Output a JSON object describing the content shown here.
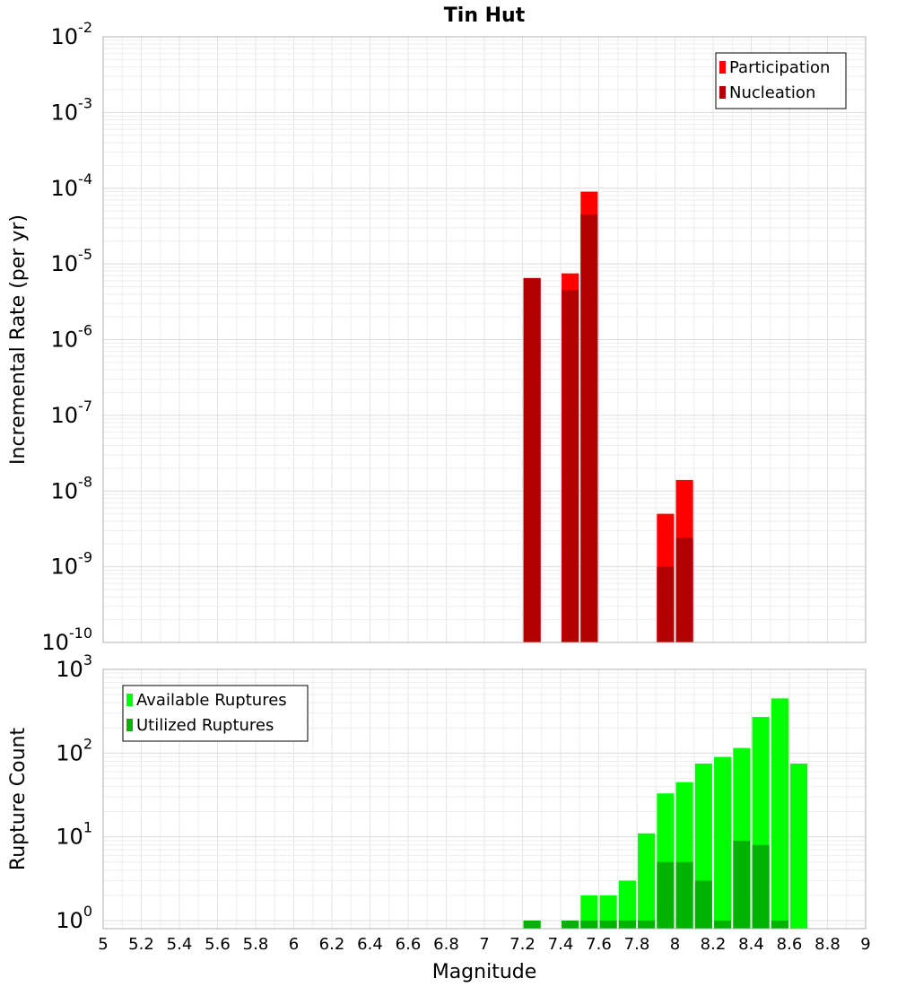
{
  "chart_data": [
    {
      "type": "bar",
      "title": "Tin Hut",
      "xlabel": "",
      "ylabel": "Incremental Rate (per yr)",
      "yscale": "log",
      "xlim": [
        5,
        9
      ],
      "ylim": [
        1e-10,
        0.01
      ],
      "grid": true,
      "bar_width": 0.09,
      "legend_position": "top-right",
      "y_ticks": [
        {
          "base": "10",
          "exp": "-10",
          "value": 1e-10
        },
        {
          "base": "10",
          "exp": "-9",
          "value": 1e-09
        },
        {
          "base": "10",
          "exp": "-8",
          "value": 1e-08
        },
        {
          "base": "10",
          "exp": "-7",
          "value": 1e-07
        },
        {
          "base": "10",
          "exp": "-6",
          "value": 1e-06
        },
        {
          "base": "10",
          "exp": "-5",
          "value": 1e-05
        },
        {
          "base": "10",
          "exp": "-4",
          "value": 0.0001
        },
        {
          "base": "10",
          "exp": "-3",
          "value": 0.001
        },
        {
          "base": "10",
          "exp": "-2",
          "value": 0.01
        }
      ],
      "series": [
        {
          "name": "Participation",
          "color": "#ff0000",
          "x": [
            7.25,
            7.45,
            7.55,
            7.95,
            8.05
          ],
          "values": [
            6.5e-06,
            7.5e-06,
            9e-05,
            5e-09,
            1.4e-08
          ]
        },
        {
          "name": "Nucleation",
          "color": "#b30000",
          "x": [
            7.25,
            7.45,
            7.55,
            7.95,
            8.05
          ],
          "values": [
            6.5e-06,
            4.5e-06,
            4.5e-05,
            1e-09,
            2.4e-09
          ]
        }
      ]
    },
    {
      "type": "bar",
      "title": "",
      "xlabel": "Magnitude",
      "ylabel": "Rupture Count",
      "yscale": "log",
      "xlim": [
        5,
        9
      ],
      "ylim": [
        0.8,
        1000
      ],
      "grid": true,
      "bar_width": 0.09,
      "legend_position": "top-left",
      "x_ticks": [
        "5",
        "5.2",
        "5.4",
        "5.6",
        "5.8",
        "6",
        "6.2",
        "6.4",
        "6.6",
        "6.8",
        "7",
        "7.2",
        "7.4",
        "7.6",
        "7.8",
        "8",
        "8.2",
        "8.4",
        "8.6",
        "8.8",
        "9"
      ],
      "y_ticks": [
        {
          "base": "10",
          "exp": "0",
          "value": 1
        },
        {
          "base": "10",
          "exp": "1",
          "value": 10
        },
        {
          "base": "10",
          "exp": "2",
          "value": 100
        },
        {
          "base": "10",
          "exp": "3",
          "value": 1000
        }
      ],
      "series": [
        {
          "name": "Available Ruptures",
          "color": "#00ff00",
          "x": [
            7.25,
            7.45,
            7.55,
            7.65,
            7.75,
            7.85,
            7.95,
            8.05,
            8.15,
            8.25,
            8.35,
            8.45,
            8.55,
            8.65
          ],
          "values": [
            1,
            1,
            2,
            2,
            3,
            11,
            33,
            45,
            75,
            90,
            115,
            270,
            450,
            75
          ]
        },
        {
          "name": "Utilized Ruptures",
          "color": "#00b300",
          "x": [
            7.25,
            7.45,
            7.55,
            7.65,
            7.75,
            7.85,
            7.95,
            8.05,
            8.15,
            8.25,
            8.35,
            8.45,
            8.55
          ],
          "values": [
            1,
            1,
            1,
            1,
            1,
            1,
            5,
            5,
            3,
            1,
            9,
            8,
            1
          ]
        }
      ]
    }
  ]
}
